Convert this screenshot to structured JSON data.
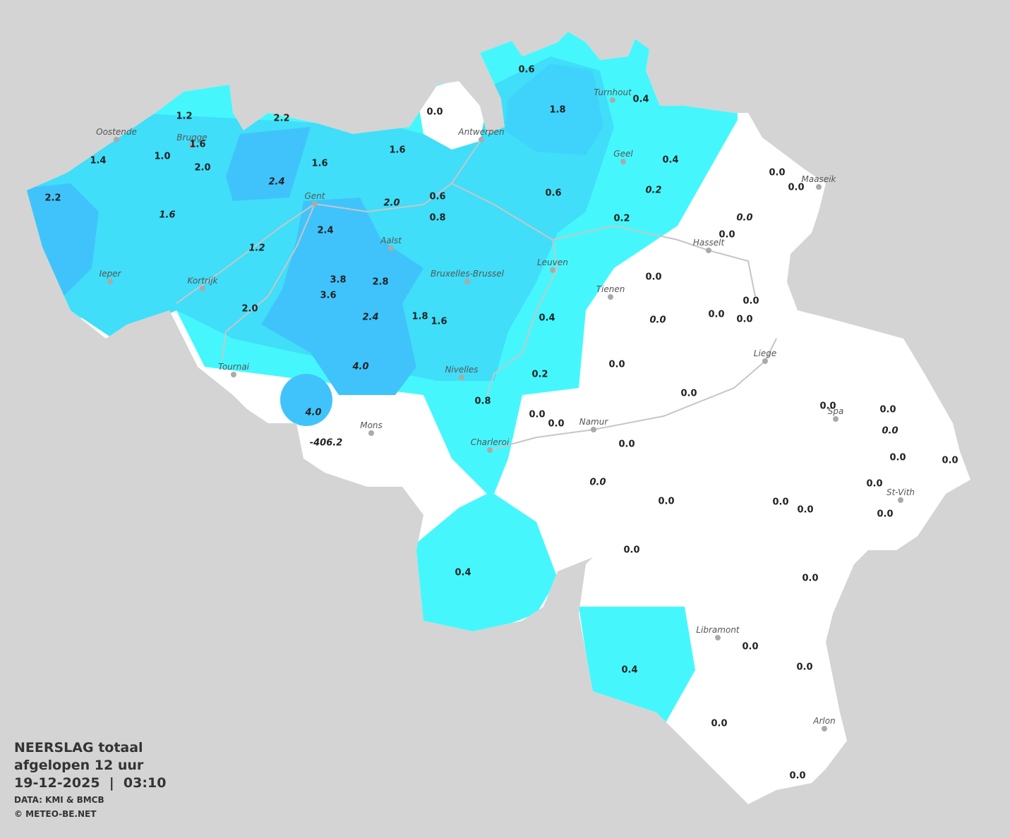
{
  "title": [
    "NEERSLAG totaal",
    "afgelopen 12 uur",
    "19-12-2025  |  03:10"
  ],
  "source": "DATA: KMI & BMCB",
  "copyright": "© METEO-BE.NET",
  "cities": [
    "Oostende",
    "Brugge",
    "Antwerpen",
    "Turnhout",
    "Geel",
    "Maaseik",
    "Gent",
    "Aalst",
    "Hasselt",
    "Ieper",
    "Kortrijk",
    "Bruxelles-Brussel",
    "Leuven",
    "Tienen",
    "Liege",
    "Tournai",
    "Nivelles",
    "Spa",
    "Mons",
    "Namur",
    "Charleroi",
    "St-Vith",
    "Libramont",
    "Arlon"
  ],
  "readings": [
    "0.6",
    "1.8",
    "0.4",
    "0.0",
    "1.2",
    "2.2",
    "1.6",
    "1.4",
    "1.0",
    "2.0",
    "1.6",
    "1.6",
    "0.4",
    "0.0",
    "0.0",
    "0.6",
    "2.2",
    "0.6",
    "0.8",
    "0.2",
    "0.0",
    "2.4",
    "0.0",
    "3.8",
    "2.8",
    "3.6",
    "0.0",
    "2.0",
    "1.8",
    "1.6",
    "0.4",
    "0.0",
    "0.0",
    "0.0",
    "0.2",
    "0.0",
    "0.8",
    "0.0",
    "0.0",
    "0.0",
    "0.0",
    "0.0",
    "0.0",
    "0.0",
    "0.0",
    "0.0",
    "0.0",
    "0.0",
    "0.0",
    "0.0",
    "0.4",
    "0.0",
    "0.0",
    "0.0",
    "0.4",
    "0.0",
    "0.0",
    "2.4",
    "1.6",
    "2.0",
    "0.2",
    "0.0",
    "1.2",
    "2.4",
    "0.0",
    "4.0",
    "4.0",
    "-406.2",
    "0.0",
    "0.0"
  ]
}
